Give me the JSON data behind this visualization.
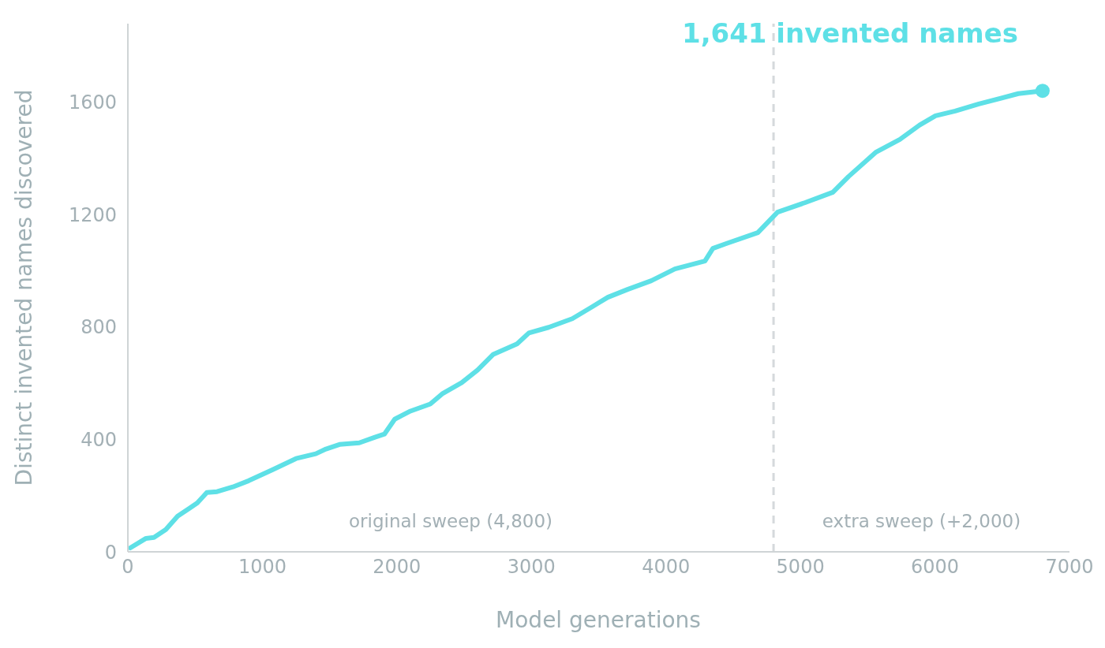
{
  "chart_data": {
    "type": "line",
    "title": "1,641 invented names",
    "xlabel": "Model generations",
    "ylabel": "Distinct invented names discovered",
    "x": [
      18,
      135,
      194,
      282,
      370,
      458,
      516,
      587,
      663,
      780,
      898,
      1074,
      1250,
      1397,
      1473,
      1573,
      1720,
      1837,
      1907,
      1984,
      2101,
      2248,
      2336,
      2482,
      2600,
      2717,
      2893,
      2981,
      3128,
      3304,
      3451,
      3568,
      3715,
      3891,
      4067,
      4290,
      4349,
      4448,
      4683,
      4830,
      5035,
      5241,
      5358,
      5563,
      5739,
      5886,
      6004,
      6150,
      6326,
      6620,
      6800
    ],
    "series": [
      {
        "color": "#5ee0e6",
        "values": [
          14,
          48,
          51,
          79,
          127,
          155,
          174,
          211,
          214,
          231,
          253,
          292,
          332,
          349,
          366,
          382,
          388,
          408,
          419,
          472,
          501,
          526,
          562,
          602,
          647,
          703,
          740,
          779,
          799,
          830,
          872,
          906,
          934,
          965,
          1007,
          1035,
          1080,
          1097,
          1136,
          1209,
          1243,
          1280,
          1336,
          1423,
          1468,
          1519,
          1552,
          1569,
          1594,
          1631,
          1641
        ]
      }
    ],
    "xlim": [
      0,
      7000
    ],
    "xticks": [
      0,
      1000,
      2000,
      3000,
      4000,
      5000,
      6000,
      7000
    ],
    "ylim": [
      0,
      1880
    ],
    "yticks": [
      0,
      400,
      800,
      1200,
      1600
    ],
    "grid": false,
    "legend": false,
    "ref_lines": [
      {
        "axis": "x",
        "value": 4800,
        "color": "#d5d9dc",
        "line_style": "dashed"
      }
    ],
    "annotations": [
      "original sweep (4,800)",
      "extra sweep (+2,000)"
    ]
  }
}
